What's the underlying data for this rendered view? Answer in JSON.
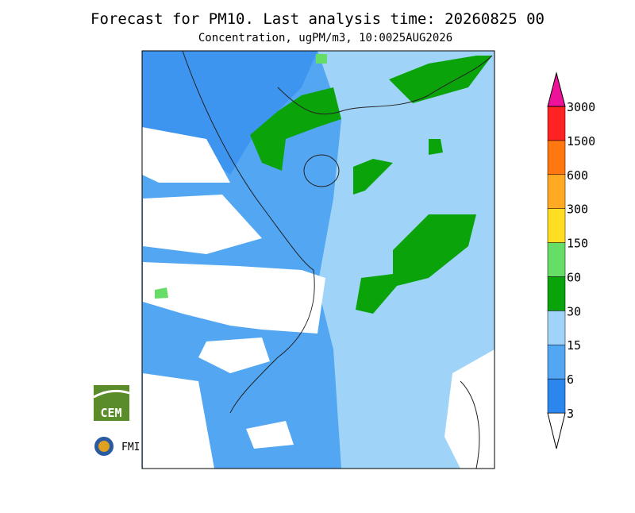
{
  "header": {
    "title": "Forecast for PM10. Last analysis time: 20260825 00",
    "subtitle": "Concentration, ugPM/m3, 10:0025AUG2026"
  },
  "legend": {
    "levels": [
      3,
      6,
      15,
      30,
      60,
      150,
      300,
      600,
      1500,
      3000
    ],
    "colors": [
      "#ffffff",
      "#2b86ee",
      "#52a6f2",
      "#9fd3f8",
      "#0aa30a",
      "#66dd66",
      "#ffdd22",
      "#ffaa22",
      "#ff7711",
      "#ff2222",
      "#ee1199"
    ]
  },
  "logos": {
    "cem": "CEM",
    "fmi": "FMI"
  }
}
